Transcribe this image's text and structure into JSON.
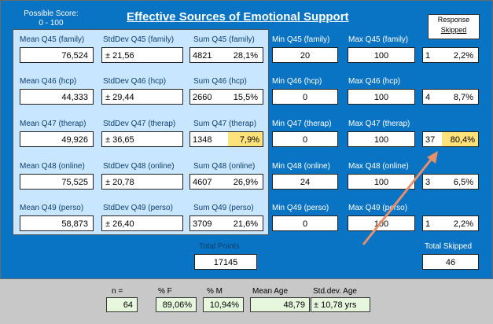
{
  "header": {
    "possible_score_line1": "Possible Score:",
    "possible_score_line2": "0 - 100",
    "title": "Effective Sources of Emotional Support",
    "response_line1": "Response",
    "response_line2": "Skipped"
  },
  "rows": [
    {
      "mean_label": "Mean Q45 (family)",
      "mean": "76,524",
      "sd_label": "StdDev Q45 (family)",
      "sd": "± 21,56",
      "sum_label": "Sum Q45 (family)",
      "sum": "4821",
      "sum_pct": "28,1%",
      "min_label": "Min Q45 (family)",
      "min": "20",
      "max_label": "Max Q45 (family)",
      "max": "100",
      "skip_n": "1",
      "skip_pct": "2,2%"
    },
    {
      "mean_label": "Mean Q46 (hcp)",
      "mean": "44,333",
      "sd_label": "StdDev Q46 (hcp)",
      "sd": "± 29,44",
      "sum_label": "Sum Q46 (hcp)",
      "sum": "2660",
      "sum_pct": "15,5%",
      "min_label": "Min Q46 (hcp)",
      "min": "0",
      "max_label": "Max Q46 (hcp)",
      "max": "100",
      "skip_n": "4",
      "skip_pct": "8,7%"
    },
    {
      "mean_label": "Mean Q47 (therap)",
      "mean": "49,926",
      "sd_label": "StdDev Q47 (therap)",
      "sd": "± 36,65",
      "sum_label": "Sum Q47 (therap)",
      "sum": "1348",
      "sum_pct": "7,9%",
      "min_label": "Min Q47 (therap)",
      "min": "0",
      "max_label": "Max Q47 (therap)",
      "max": "100",
      "skip_n": "37",
      "skip_pct": "80,4%"
    },
    {
      "mean_label": "Mean Q48 (online)",
      "mean": "75,525",
      "sd_label": "StdDev Q48 (online)",
      "sd": "± 20,78",
      "sum_label": "Sum Q48 (online)",
      "sum": "4607",
      "sum_pct": "26,9%",
      "min_label": "Min Q48 (online)",
      "min": "24",
      "max_label": "Max Q48 (online)",
      "max": "100",
      "skip_n": "3",
      "skip_pct": "6,5%"
    },
    {
      "mean_label": "Mean Q49 (perso)",
      "mean": "58,873",
      "sd_label": "StdDev Q49 (perso)",
      "sd": "± 26,40",
      "sum_label": "Sum Q49 (perso)",
      "sum": "3709",
      "sum_pct": "21,6%",
      "min_label": "Min Q49 (perso)",
      "min": "0",
      "max_label": "Max Q49 (perso)",
      "max": "100",
      "skip_n": "1",
      "skip_pct": "2,2%"
    }
  ],
  "totals": {
    "points_label": "Total Points",
    "points": "17145",
    "skipped_label": "Total Skipped",
    "skipped": "46"
  },
  "summary": {
    "n_label": "n =",
    "n": "64",
    "f_label": "% F",
    "f": "89,06%",
    "m_label": "% M",
    "m": "10,94%",
    "age_label": "Mean Age",
    "age": "48,79",
    "age_sd_label": "Std.dev. Age",
    "age_sd": "± 10,78 yrs"
  },
  "colors": {
    "frame_blue": "#0a74c4",
    "panel_light": "#c8e6ff",
    "highlight": "#ffe37a",
    "arrow": "#e8906a",
    "summary_box": "#e6f7dd"
  }
}
